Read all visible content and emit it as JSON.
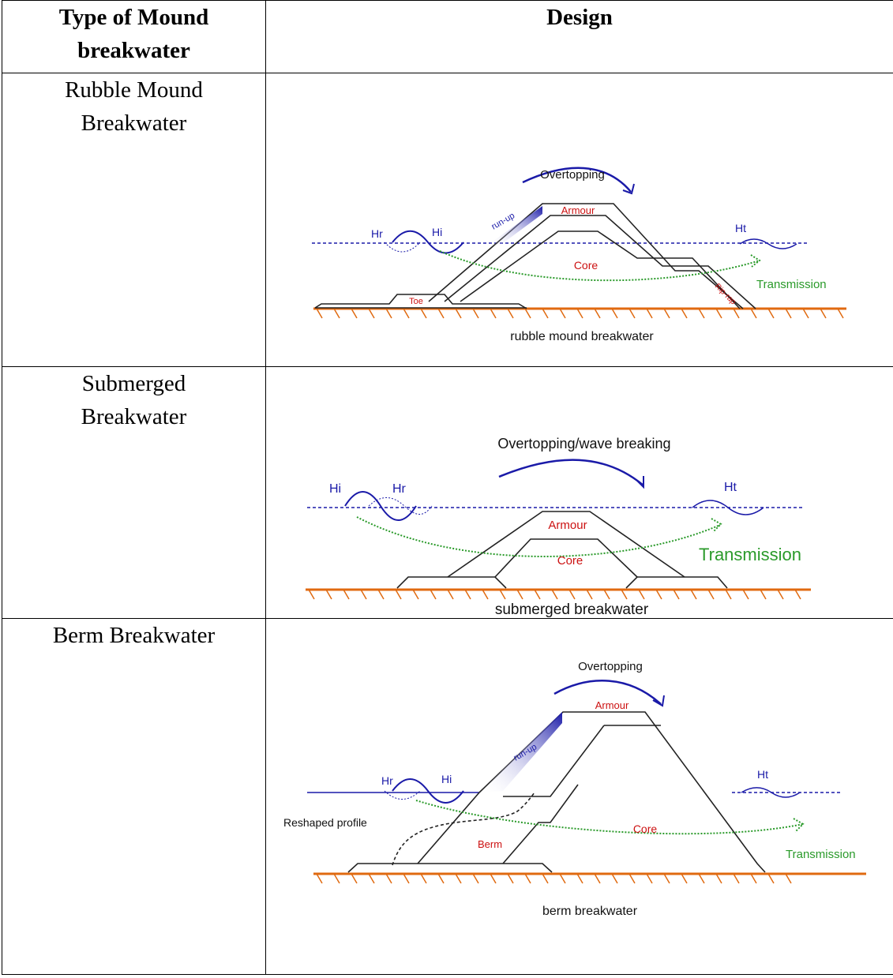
{
  "header": {
    "col1": "Type of Mound breakwater",
    "col1_line1": "Type of Mound",
    "col1_line2": "breakwater",
    "col2": "Design"
  },
  "rows": [
    {
      "type_line1": "Rubble Mound",
      "type_line2": "Breakwater",
      "labels": {
        "overtopping": "Overtopping",
        "armour": "Armour",
        "runup": "run-up",
        "hr": "Hr",
        "hi": "Hi",
        "ht": "Ht",
        "core": "Core",
        "transmission": "Transmission",
        "toe": "Toe",
        "riprap": "Rip-rap",
        "caption": "rubble mound breakwater"
      }
    },
    {
      "type_line1": "Submerged",
      "type_line2": "Breakwater",
      "labels": {
        "overtopping": "Overtopping/wave breaking",
        "hi": "Hi",
        "hr": "Hr",
        "ht": "Ht",
        "armour": "Armour",
        "core": "Core",
        "transmission": "Transmission",
        "caption": "submerged breakwater"
      }
    },
    {
      "type_line1": "Berm Breakwater",
      "type_line2": "",
      "labels": {
        "overtopping": "Overtopping",
        "armour": "Armour",
        "runup": "run-up",
        "hr": "Hr",
        "hi": "Hi",
        "ht": "Ht",
        "reshaped": "Reshaped profile",
        "berm": "Berm",
        "core": "Core",
        "transmission": "Transmission",
        "caption": "berm breakwater"
      }
    }
  ],
  "colors": {
    "wave_blue": "#1a1aa8",
    "label_red": "#cc1111",
    "transmission_green": "#2a9a2a",
    "seabed_orange": "#e06a10"
  }
}
